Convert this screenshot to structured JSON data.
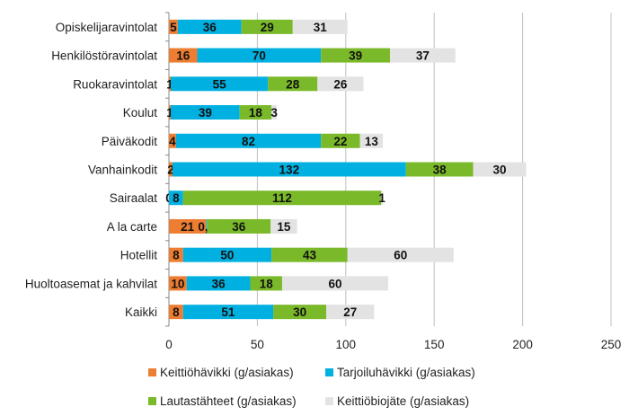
{
  "chart_data": {
    "type": "bar",
    "orientation": "horizontal",
    "stacked": true,
    "categories": [
      "Opiskelijaravintolat",
      "Henkilöstöravintolat",
      "Ruokaravintolat",
      "Koulut",
      "Päiväkodit",
      "Vanhainkodit",
      "Sairaalat",
      "A la carte",
      "Hotellit",
      "Huoltoasemat ja kahvilat",
      "Kaikki"
    ],
    "series": [
      {
        "name": "Keittiöhävikki (g/asiakas)",
        "color": "#ED7D31",
        "values": [
          5,
          16,
          1,
          1,
          4,
          2,
          0,
          21,
          8,
          10,
          8
        ],
        "labels": [
          "5",
          "16",
          "1",
          "1",
          "4",
          "2",
          "0",
          "21",
          "8",
          "10",
          "8"
        ]
      },
      {
        "name": "Tarjoiluhävikki (g/asiakas)",
        "color": "#00B0E0",
        "values": [
          36,
          70,
          55,
          39,
          82,
          132,
          8,
          0.5,
          50,
          36,
          51
        ],
        "labels": [
          "36",
          "70",
          "55",
          "39",
          "82",
          "132",
          "8",
          "0,5",
          "50",
          "36",
          "51"
        ]
      },
      {
        "name": "Lautastähteet (g/asiakas)",
        "color": "#7AB929",
        "values": [
          29,
          39,
          28,
          18,
          22,
          38,
          112,
          36,
          43,
          18,
          30
        ],
        "labels": [
          "29",
          "39",
          "28",
          "18",
          "22",
          "38",
          "112",
          "36",
          "43",
          "18",
          "30"
        ]
      },
      {
        "name": "Keittiöbiojäte (g/asiakas)",
        "color": "#E3E3E3",
        "values": [
          31,
          37,
          26,
          3,
          13,
          30,
          1,
          15,
          60,
          60,
          27
        ],
        "labels": [
          "31",
          "37",
          "26",
          "3",
          "13",
          "30",
          "1",
          "15",
          "60",
          "60",
          "27"
        ]
      }
    ],
    "xlim": [
      0,
      250
    ],
    "xticks": [
      "0",
      "50",
      "100",
      "150",
      "200",
      "250"
    ],
    "grid": true,
    "legend": "bottom"
  }
}
